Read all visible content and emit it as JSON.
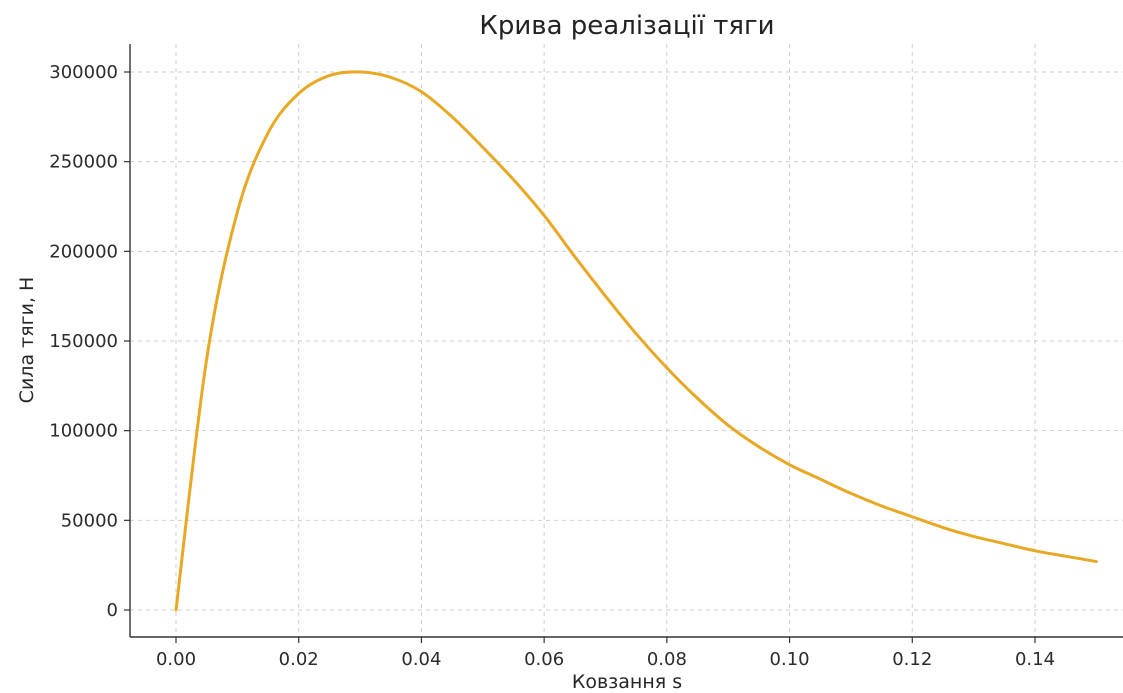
{
  "chart_data": {
    "type": "line",
    "title": "Крива реалізації тяги",
    "xlabel": "Ковзання s",
    "ylabel": "Сила тяги, Н",
    "xlim": [
      -0.0075,
      0.1575
    ],
    "ylim": [
      -15000,
      315000
    ],
    "x_ticks": [
      0.0,
      0.02,
      0.04,
      0.06,
      0.08,
      0.1,
      0.12,
      0.14
    ],
    "x_tick_labels": [
      "0.00",
      "0.02",
      "0.04",
      "0.06",
      "0.08",
      "0.10",
      "0.12",
      "0.14"
    ],
    "y_ticks": [
      0,
      50000,
      100000,
      150000,
      200000,
      250000,
      300000
    ],
    "y_tick_labels": [
      "0",
      "50000",
      "100000",
      "150000",
      "200000",
      "250000",
      "300000"
    ],
    "grid": true,
    "series": [
      {
        "color": "#E8A823",
        "x": [
          0.0,
          0.005,
          0.01,
          0.015,
          0.02,
          0.025,
          0.03,
          0.035,
          0.04,
          0.045,
          0.05,
          0.055,
          0.06,
          0.065,
          0.07,
          0.075,
          0.08,
          0.085,
          0.09,
          0.095,
          0.1,
          0.105,
          0.11,
          0.115,
          0.12,
          0.125,
          0.13,
          0.135,
          0.14,
          0.145,
          0.15
        ],
        "y": [
          0,
          140000,
          222000,
          266000,
          288000,
          298000,
          300000,
          297000,
          289000,
          275000,
          258000,
          240000,
          220000,
          197000,
          175000,
          154000,
          135000,
          118000,
          103000,
          91000,
          81000,
          73000,
          65000,
          58000,
          52000,
          46000,
          41000,
          37000,
          33000,
          30000,
          27000
        ]
      }
    ]
  }
}
